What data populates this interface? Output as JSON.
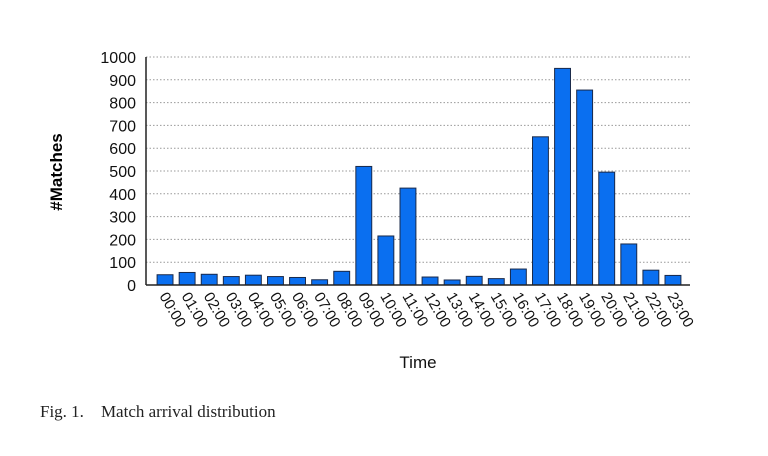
{
  "chart_data": {
    "type": "bar",
    "title": "",
    "xlabel": "Time",
    "ylabel": "#Matches",
    "ylim": [
      0,
      1000
    ],
    "yticks": [
      0,
      100,
      200,
      300,
      400,
      500,
      600,
      700,
      800,
      900,
      1000
    ],
    "grid": "horizontal dotted",
    "bar_color": "#0a6ff0",
    "categories": [
      "00:00",
      "01:00",
      "02:00",
      "03:00",
      "04:00",
      "05:00",
      "06:00",
      "07:00",
      "08:00",
      "09:00",
      "10:00",
      "11:00",
      "12:00",
      "13:00",
      "14:00",
      "15:00",
      "16:00",
      "17:00",
      "18:00",
      "19:00",
      "20:00",
      "21:00",
      "22:00",
      "23:00"
    ],
    "values": [
      45,
      55,
      47,
      37,
      43,
      37,
      33,
      23,
      60,
      520,
      215,
      425,
      35,
      22,
      38,
      28,
      70,
      650,
      950,
      855,
      495,
      180,
      65,
      42
    ]
  },
  "caption": {
    "label": "Fig. 1.",
    "text": "Match arrival distribution"
  }
}
